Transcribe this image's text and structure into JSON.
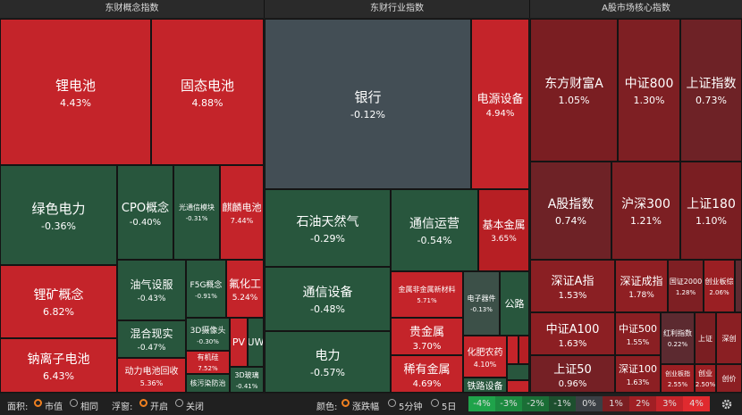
{
  "panels": [
    {
      "title": "东财概念指数",
      "tiles": [
        {
          "name": "锂电池",
          "change": "4.43%"
        },
        {
          "name": "固态电池",
          "change": "4.88%"
        },
        {
          "name": "绿色电力",
          "change": "-0.36%"
        },
        {
          "name": "CPO概念",
          "change": "-0.40%"
        },
        {
          "name": "光通信模块",
          "change": "-0.31%"
        },
        {
          "name": "麒麟电池",
          "change": "7.44%"
        },
        {
          "name": "锂矿概念",
          "change": "6.82%"
        },
        {
          "name": "钠离子电池",
          "change": "6.43%"
        },
        {
          "name": "油气设服",
          "change": "-0.43%"
        },
        {
          "name": "F5G概念",
          "change": "-0.91%"
        },
        {
          "name": "氟化工",
          "change": "5.24%"
        },
        {
          "name": "混合现实",
          "change": "-0.47%"
        },
        {
          "name": "动力电池回收",
          "change": "5.36%"
        },
        {
          "name": "3D摄像头",
          "change": "-0.30%"
        },
        {
          "name": "PV"
        },
        {
          "name": "UW"
        },
        {
          "name": "有机硅",
          "change": "7.52%"
        },
        {
          "name": "核污染防治"
        },
        {
          "name": "3D玻璃",
          "change": "-0.41%"
        }
      ]
    },
    {
      "title": "东财行业指数",
      "tiles": [
        {
          "name": "银行",
          "change": "-0.12%"
        },
        {
          "name": "电源设备",
          "change": "4.94%"
        },
        {
          "name": "石油天然气",
          "change": "-0.29%"
        },
        {
          "name": "通信运营",
          "change": "-0.54%"
        },
        {
          "name": "基本金属",
          "change": "3.65%"
        },
        {
          "name": "通信设备",
          "change": "-0.48%"
        },
        {
          "name": "电力",
          "change": "-0.57%"
        },
        {
          "name": "金属非金属新材料",
          "change": "5.71%"
        },
        {
          "name": "电子器件",
          "change": "-0.13%"
        },
        {
          "name": "公路"
        },
        {
          "name": "贵金属",
          "change": "3.70%"
        },
        {
          "name": "稀有金属",
          "change": "4.69%"
        },
        {
          "name": "化肥农药",
          "change": "4.10%"
        },
        {
          "name": "铁路设备"
        }
      ]
    },
    {
      "title": "A股市场核心指数",
      "tiles": [
        {
          "name": "东方财富A",
          "change": "1.05%"
        },
        {
          "name": "中证800",
          "change": "1.30%"
        },
        {
          "name": "上证指数",
          "change": "0.73%"
        },
        {
          "name": "A股指数",
          "change": "0.74%"
        },
        {
          "name": "沪深300",
          "change": "1.21%"
        },
        {
          "name": "上证180",
          "change": "1.10%"
        },
        {
          "name": "深证A指",
          "change": "1.53%"
        },
        {
          "name": "深证成指",
          "change": "1.78%"
        },
        {
          "name": "国证2000",
          "change": "1.28%"
        },
        {
          "name": "创业板综",
          "change": "2.06%"
        },
        {
          "name": "中证A100",
          "change": "1.63%"
        },
        {
          "name": "上证50",
          "change": "0.96%"
        },
        {
          "name": "中证500",
          "change": "1.55%"
        },
        {
          "name": "深证100",
          "change": "1.63%"
        },
        {
          "name": "红利指数",
          "change": "0.22%"
        },
        {
          "name": "上证"
        },
        {
          "name": "深创"
        },
        {
          "name": "创业板指",
          "change": "2.55%"
        },
        {
          "name": "创业",
          "change": "2.50%"
        },
        {
          "name": "创价"
        }
      ]
    }
  ],
  "toolbar": {
    "area_label": "面积:",
    "area_options": [
      "市值",
      "相同"
    ],
    "popup_label": "浮窗:",
    "popup_options": [
      "开启",
      "关闭"
    ],
    "color_label": "颜色:",
    "color_options": [
      "涨跌幅",
      "5分钟",
      "5日"
    ]
  },
  "legend": [
    "-4%",
    "-3%",
    "-2%",
    "-1%",
    "0%",
    "1%",
    "2%",
    "3%",
    "4%"
  ]
}
